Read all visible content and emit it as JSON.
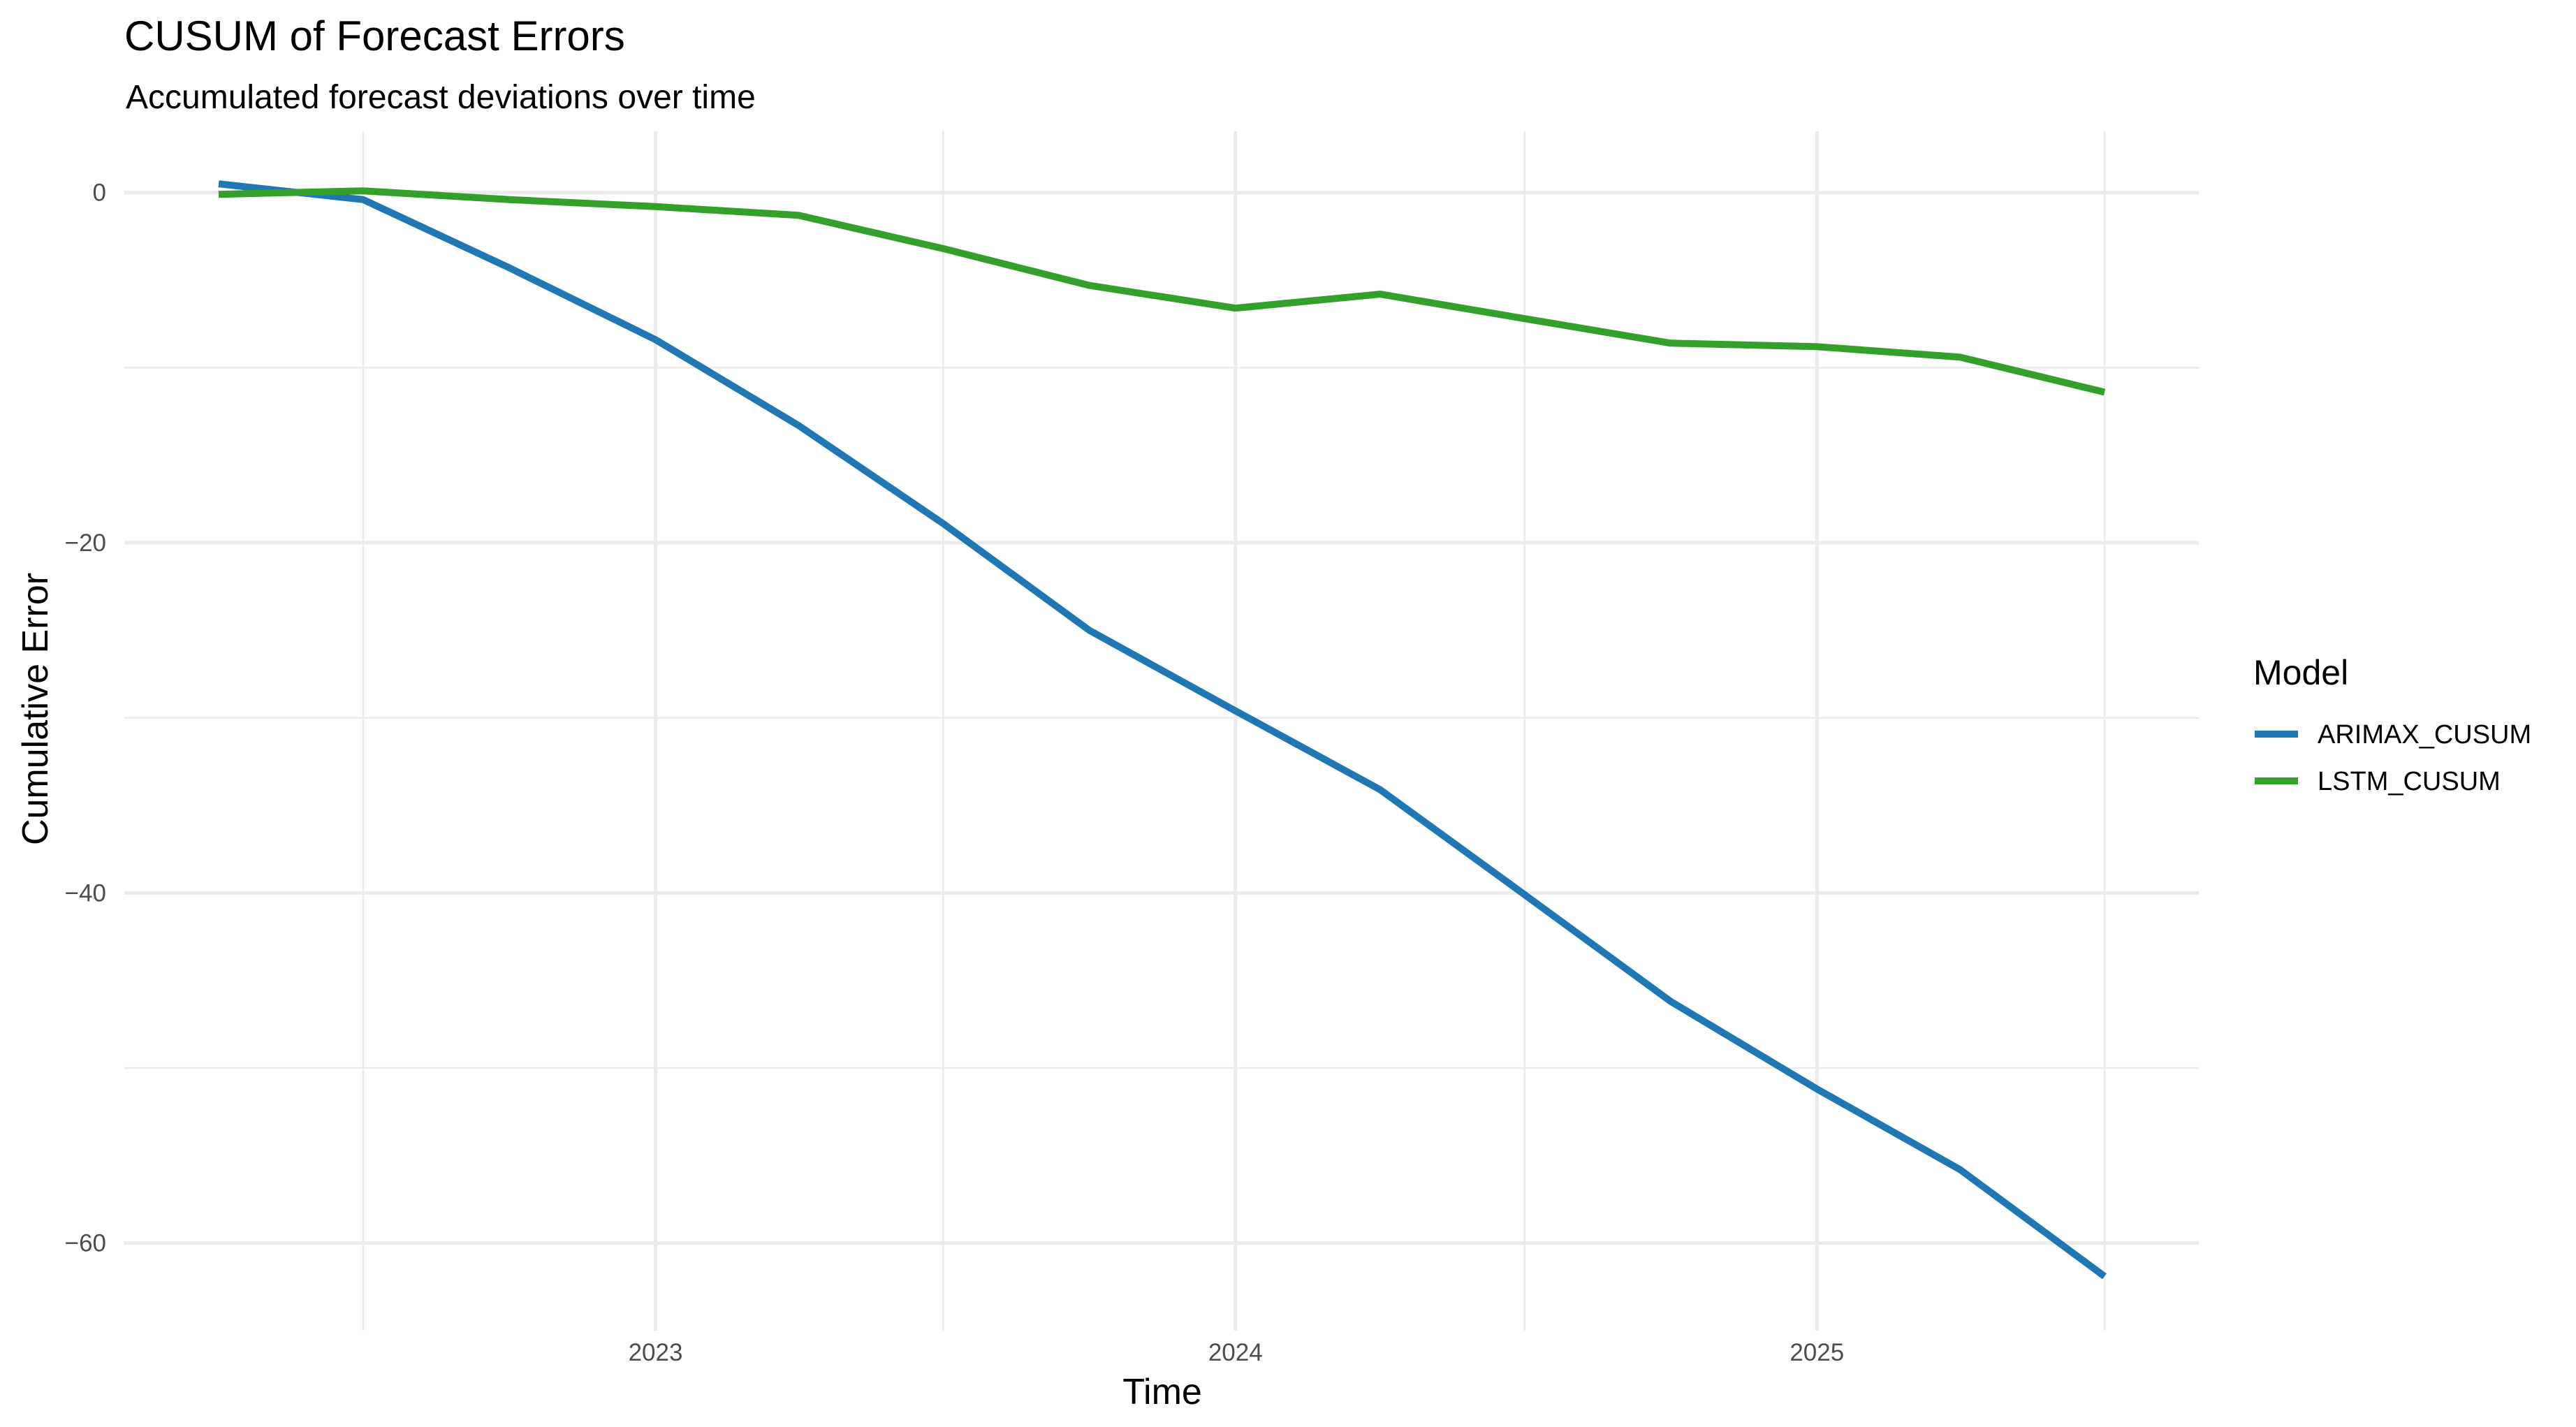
{
  "chart_data": {
    "type": "line",
    "title": "CUSUM of Forecast Errors",
    "subtitle": "Accumulated forecast deviations over time",
    "xlabel": "Time",
    "ylabel": "Cumulative Error",
    "x": [
      "2022-04-01",
      "2022-07-01",
      "2022-10-01",
      "2023-01-01",
      "2023-04-01",
      "2023-07-01",
      "2023-10-01",
      "2024-01-01",
      "2024-04-01",
      "2024-07-01",
      "2024-10-01",
      "2025-01-01",
      "2025-04-01",
      "2025-07-01"
    ],
    "x_ticks": [
      "2023",
      "2024",
      "2025"
    ],
    "y_ticks": [
      0,
      -20,
      -40,
      -60
    ],
    "ylim": [
      -65,
      3.5
    ],
    "grid": true,
    "legend": {
      "title": "Model",
      "position": "right"
    },
    "series": [
      {
        "name": "ARIMAX_CUSUM",
        "color": "#1f78b4",
        "values": [
          0.5,
          -0.4,
          -4.3,
          -8.4,
          -13.3,
          -18.9,
          -25.0,
          -29.6,
          -34.1,
          -40.1,
          -46.2,
          -51.2,
          -55.8,
          -61.9
        ]
      },
      {
        "name": "LSTM_CUSUM",
        "color": "#33a02c",
        "values": [
          -0.1,
          0.1,
          -0.4,
          -0.8,
          -1.3,
          -3.2,
          -5.3,
          -6.6,
          -5.8,
          -7.2,
          -8.6,
          -8.8,
          -9.4,
          -11.4
        ]
      }
    ]
  }
}
